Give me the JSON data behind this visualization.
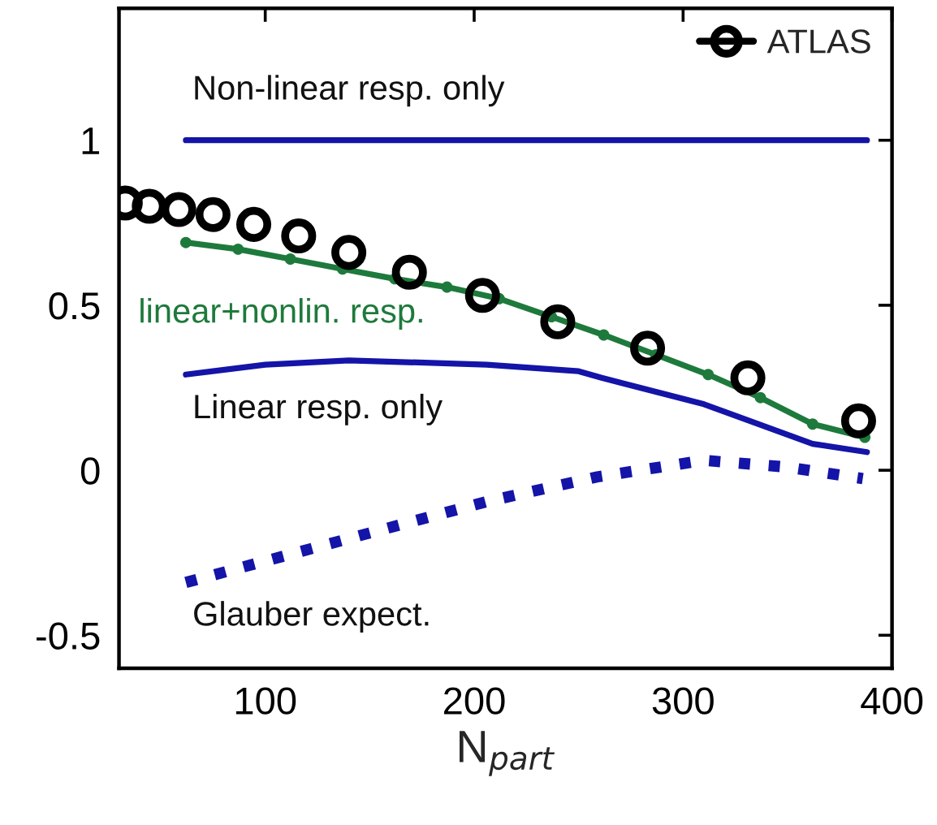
{
  "chart_data": {
    "type": "line",
    "xlabel": "N$_{part}$",
    "xlim": [
      30,
      400
    ],
    "xticks": [
      100,
      200,
      300,
      400
    ],
    "ylim": [
      -0.6,
      1.4
    ],
    "yticks": [
      -0.5,
      0,
      0.5,
      1
    ],
    "grid": false,
    "legend": "top right",
    "series": [
      {
        "color": "#1414a8",
        "line_style": "solid",
        "marker": "none",
        "x": [
          62,
          388
        ],
        "values": [
          1,
          1
        ]
      },
      {
        "color": "#1414a8",
        "line_style": "solid",
        "marker": "none",
        "x": [
          62,
          100,
          140,
          206,
          250,
          261,
          310,
          362,
          388
        ],
        "values": [
          0.29,
          0.32,
          0.333,
          0.32,
          0.3,
          0.28,
          0.2,
          0.08,
          0.055
        ]
      },
      {
        "color": "#1414a8",
        "line_style": "dotted",
        "marker": "none",
        "x": [
          62,
          150,
          206,
          259,
          310,
          349,
          386
        ],
        "values": [
          -0.34,
          -0.19,
          -0.095,
          -0.02,
          0.03,
          0.01,
          -0.025
        ]
      },
      {
        "color": "#1e7a3c",
        "line_style": "solid",
        "marker": "circle",
        "x": [
          62,
          87,
          112,
          137,
          162,
          187,
          212,
          237,
          262,
          287,
          312,
          337,
          362,
          387
        ],
        "values": [
          0.69,
          0.67,
          0.64,
          0.61,
          0.58,
          0.555,
          0.52,
          0.465,
          0.41,
          0.35,
          0.29,
          0.22,
          0.14,
          0.1
        ]
      },
      {
        "type": "scatter",
        "name": "ATLAS",
        "color": "#000000",
        "marker": "circle",
        "x": [
          33,
          44.5,
          58.6,
          75,
          94.5,
          116,
          140,
          169,
          204,
          240,
          283,
          331,
          384
        ],
        "values": [
          0.81,
          0.8,
          0.79,
          0.775,
          0.745,
          0.71,
          0.66,
          0.6,
          0.53,
          0.45,
          0.37,
          0.28,
          0.15
        ]
      }
    ],
    "annotations": [
      "Non-linear resp. only",
      "linear+nonlin. resp.",
      "Linear resp. only",
      "Glauber expect."
    ]
  }
}
